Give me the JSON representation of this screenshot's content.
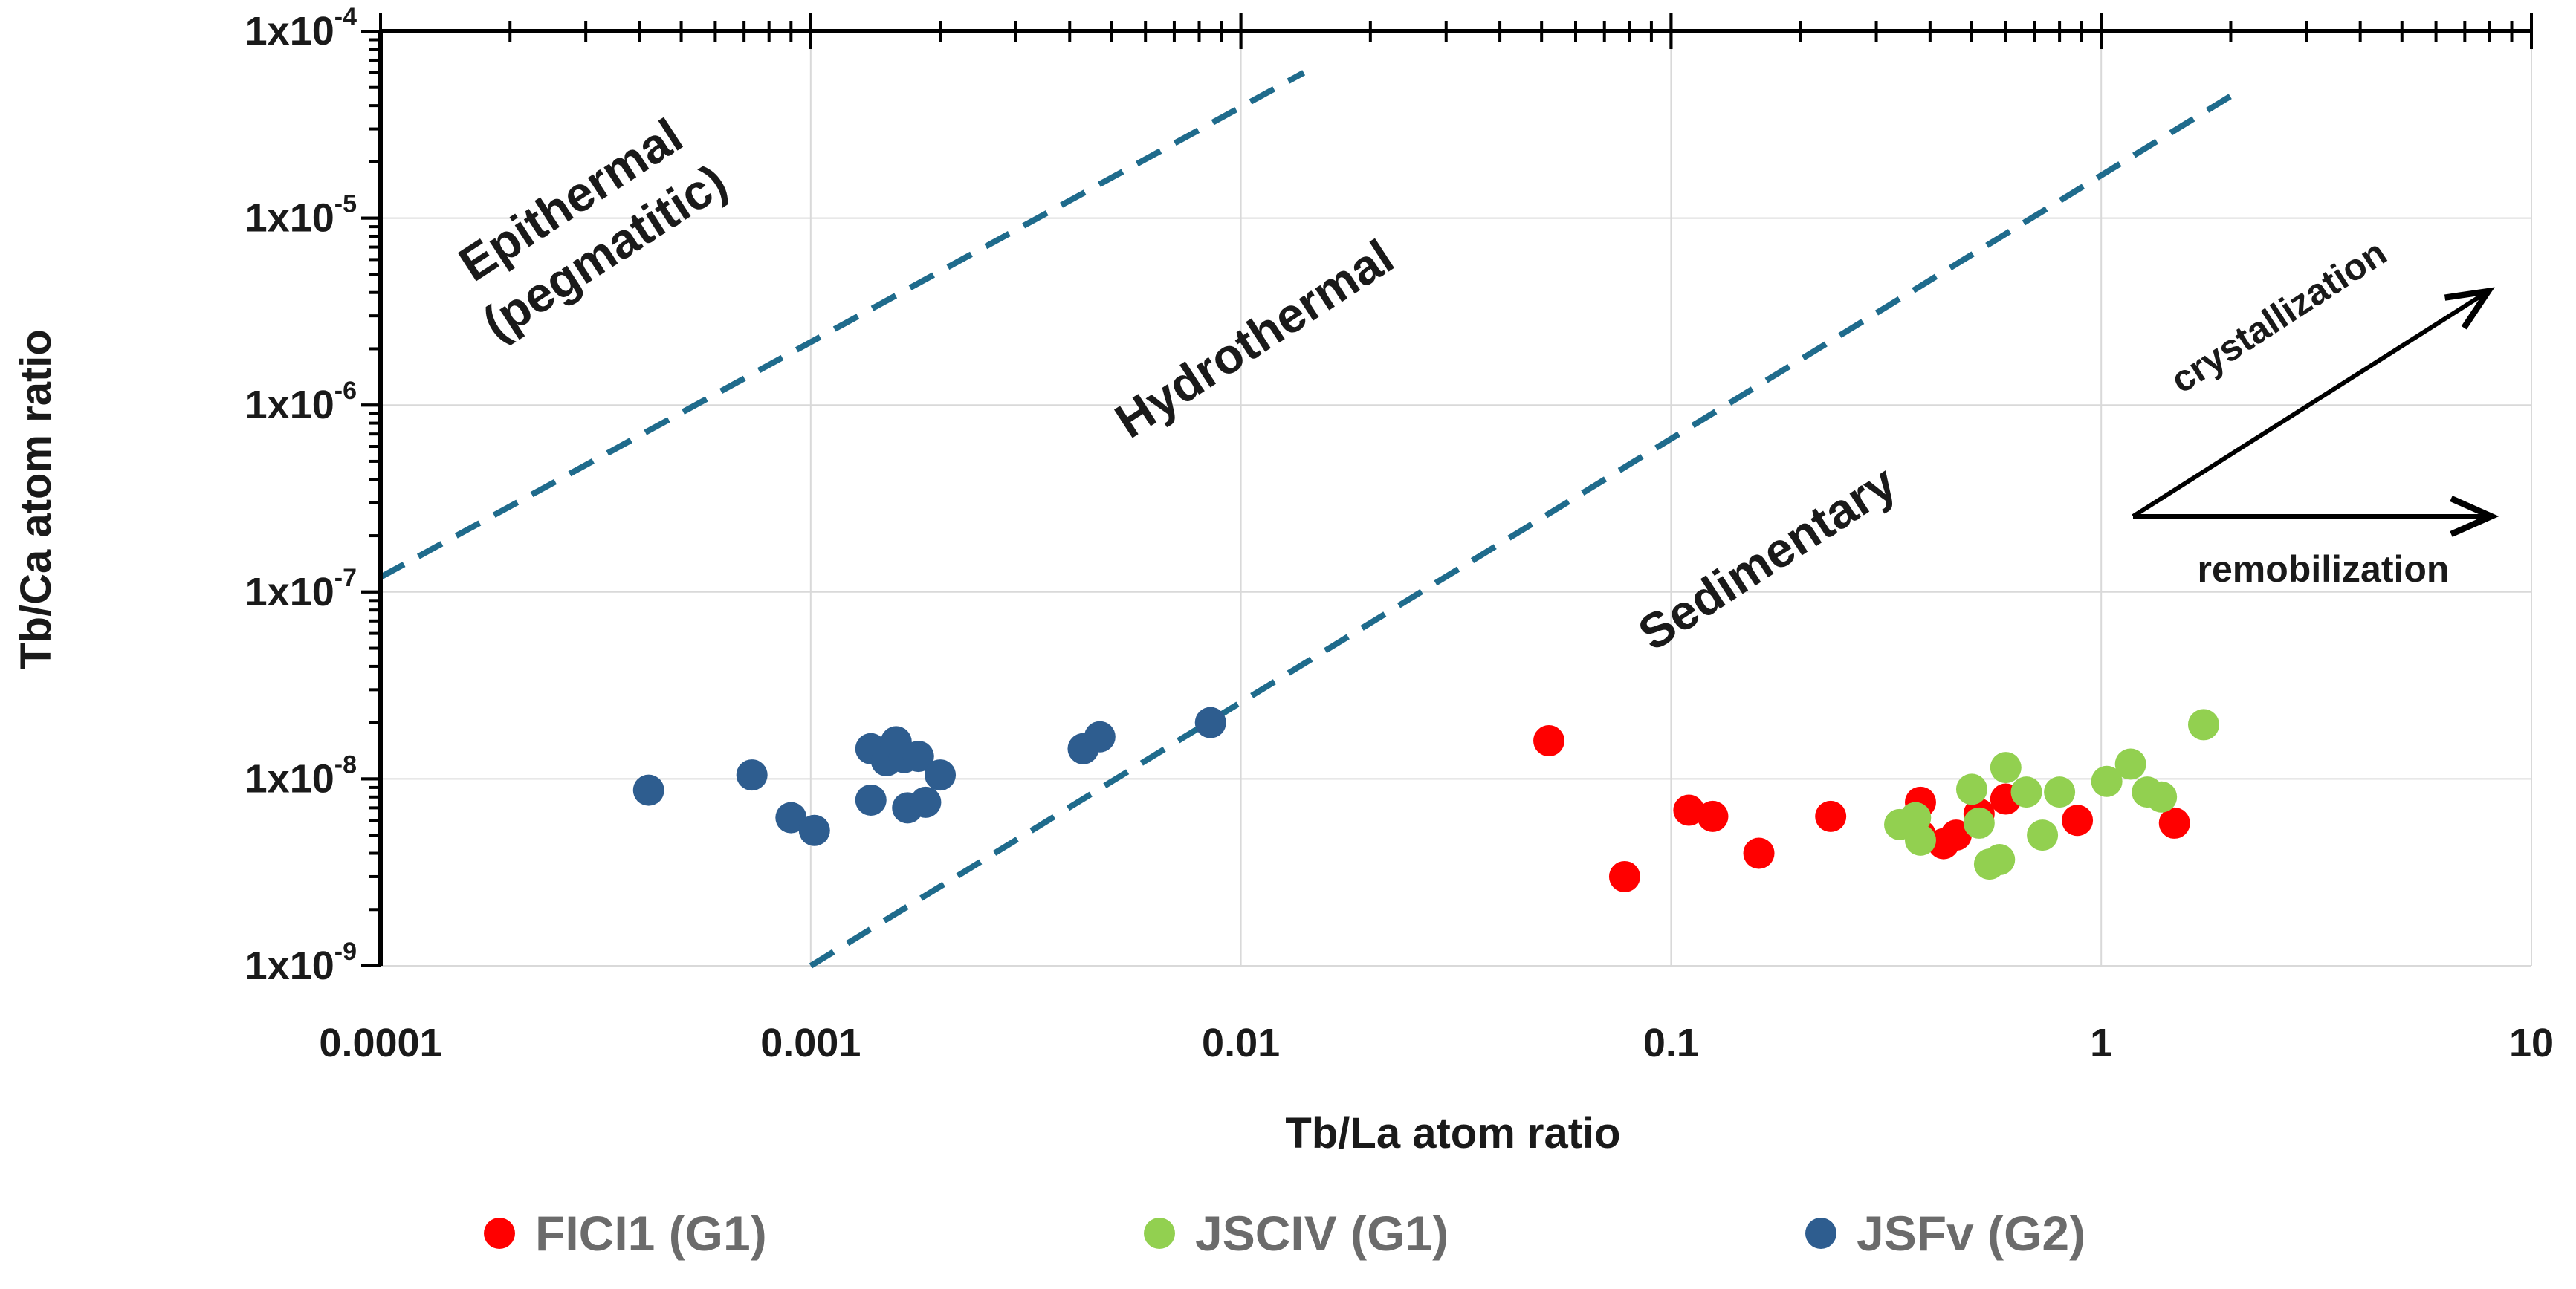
{
  "chart_data": {
    "type": "scatter",
    "title": "",
    "xlabel": "Tb/La atom ratio",
    "ylabel": "Tb/Ca atom ratio",
    "xscale": "log",
    "yscale": "log",
    "xlim": [
      0.0001,
      10
    ],
    "ylim": [
      1e-09,
      0.0001
    ],
    "grid": true,
    "legend_position": "bottom",
    "x_tick_labels": [
      "0.0001",
      "0.001",
      "0.01",
      "0.1",
      "1",
      "10"
    ],
    "y_tick_labels": [
      {
        "base": "1x10",
        "exp": "-9"
      },
      {
        "base": "1x10",
        "exp": "-8"
      },
      {
        "base": "1x10",
        "exp": "-7"
      },
      {
        "base": "1x10",
        "exp": "-6"
      },
      {
        "base": "1x10",
        "exp": "-5"
      },
      {
        "base": "1x10",
        "exp": "-4"
      }
    ],
    "boundary_lines": [
      {
        "name": "epithermal-hydrothermal",
        "x": [
          0.0001,
          0.014
        ],
        "y": [
          1.2e-07,
          6e-05
        ]
      },
      {
        "name": "hydrothermal-sedimentary",
        "x": [
          0.001,
          2.0
        ],
        "y": [
          1e-09,
          4.5e-05
        ]
      }
    ],
    "regions": [
      {
        "name": "epithermal",
        "lines": [
          "Epithermal",
          "(pegmatitic)"
        ]
      },
      {
        "name": "hydrothermal",
        "lines": [
          "Hydrothermal"
        ]
      },
      {
        "name": "sedimentary",
        "lines": [
          "Sedimentary"
        ]
      }
    ],
    "arrows": [
      {
        "name": "crystallization",
        "label": "crystallization"
      },
      {
        "name": "remobilization",
        "label": "remobilization"
      }
    ],
    "series": [
      {
        "name": "FICI1 (G1)",
        "color": "#ff0000",
        "points": [
          [
            0.052,
            1.6e-08
          ],
          [
            0.078,
            3e-09
          ],
          [
            0.11,
            6.8e-09
          ],
          [
            0.125,
            6.3e-09
          ],
          [
            0.16,
            4e-09
          ],
          [
            0.235,
            6.3e-09
          ],
          [
            0.38,
            7.5e-09
          ],
          [
            0.38,
            5e-09
          ],
          [
            0.43,
            4.5e-09
          ],
          [
            0.46,
            5e-09
          ],
          [
            0.52,
            6.5e-09
          ],
          [
            0.6,
            7.8e-09
          ],
          [
            0.88,
            6e-09
          ],
          [
            1.48,
            5.8e-09
          ]
        ]
      },
      {
        "name": "JSCIV (G1)",
        "color": "#92d050",
        "points": [
          [
            0.34,
            5.7e-09
          ],
          [
            0.37,
            6.2e-09
          ],
          [
            0.38,
            4.7e-09
          ],
          [
            0.5,
            8.8e-09
          ],
          [
            0.52,
            5.8e-09
          ],
          [
            0.55,
            3.5e-09
          ],
          [
            0.58,
            3.7e-09
          ],
          [
            0.6,
            1.15e-08
          ],
          [
            0.67,
            8.5e-09
          ],
          [
            0.73,
            5e-09
          ],
          [
            0.8,
            8.5e-09
          ],
          [
            1.03,
            9.7e-09
          ],
          [
            1.17,
            1.2e-08
          ],
          [
            1.28,
            8.5e-09
          ],
          [
            1.38,
            8e-09
          ],
          [
            1.73,
            1.95e-08
          ]
        ]
      },
      {
        "name": "JSFv (G2)",
        "color": "#2e5d8f",
        "points": [
          [
            0.00042,
            8.7e-09
          ],
          [
            0.00073,
            1.05e-08
          ],
          [
            0.0009,
            6.2e-09
          ],
          [
            0.00102,
            5.3e-09
          ],
          [
            0.00138,
            1.45e-08
          ],
          [
            0.00138,
            7.7e-09
          ],
          [
            0.0015,
            1.25e-08
          ],
          [
            0.00158,
            1.58e-08
          ],
          [
            0.00165,
            1.3e-08
          ],
          [
            0.00168,
            7e-09
          ],
          [
            0.00178,
            1.32e-08
          ],
          [
            0.00185,
            7.5e-09
          ],
          [
            0.002,
            1.05e-08
          ],
          [
            0.0043,
            1.45e-08
          ],
          [
            0.0047,
            1.68e-08
          ],
          [
            0.0085,
            2e-08
          ]
        ]
      }
    ]
  }
}
